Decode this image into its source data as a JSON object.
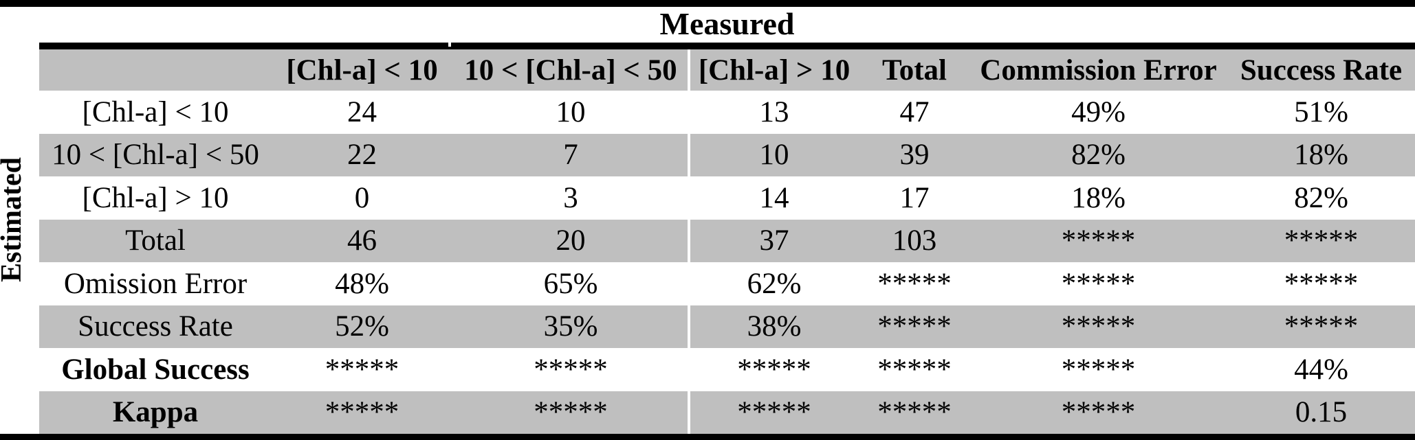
{
  "table": {
    "measured_label": "Measured",
    "estimated_label": "Estimated",
    "columns": [
      "[Chl-a] < 10",
      "10 < [Chl-a] < 50",
      "[Chl-a] > 10",
      "Total",
      "Commission Error",
      "Success Rate"
    ],
    "rows": [
      {
        "label": "[Chl-a] < 10",
        "values": [
          "24",
          "10",
          "13",
          "47",
          "49%",
          "51%"
        ]
      },
      {
        "label": "10 < [Chl-a] < 50",
        "values": [
          "22",
          "7",
          "10",
          "39",
          "82%",
          "18%"
        ]
      },
      {
        "label": "[Chl-a] > 10",
        "values": [
          "0",
          "3",
          "14",
          "17",
          "18%",
          "82%"
        ]
      },
      {
        "label": "Total",
        "values": [
          "46",
          "20",
          "37",
          "103",
          "*****",
          "*****"
        ]
      },
      {
        "label": "Omission Error",
        "values": [
          "48%",
          "65%",
          "62%",
          "*****",
          "*****",
          "*****"
        ]
      },
      {
        "label": "Success Rate",
        "values": [
          "52%",
          "35%",
          "38%",
          "*****",
          "*****",
          "*****"
        ]
      },
      {
        "label": "Global Success",
        "values": [
          "*****",
          "*****",
          "*****",
          "*****",
          "*****",
          "44%"
        ]
      },
      {
        "label": "Kappa",
        "values": [
          "*****",
          "*****",
          "*****",
          "*****",
          "*****",
          "0.15"
        ]
      }
    ],
    "colors": {
      "stripe_gray": "#bfbfbf",
      "bar_black": "#000000",
      "background": "#ffffff",
      "text": "#000000"
    }
  }
}
